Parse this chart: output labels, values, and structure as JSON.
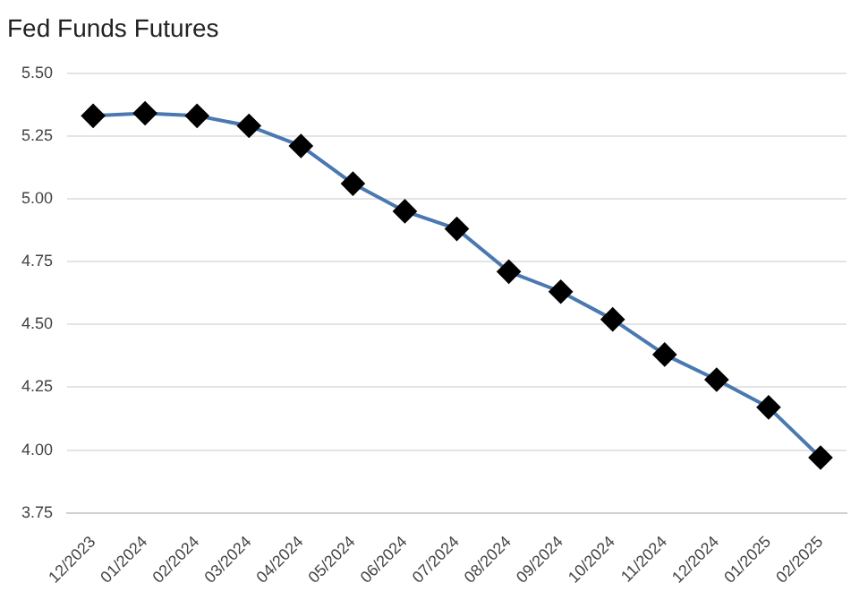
{
  "chart_data": {
    "type": "line",
    "title": "Fed Funds Futures",
    "categories": [
      "12/2023",
      "01/2024",
      "02/2024",
      "03/2024",
      "04/2024",
      "05/2024",
      "06/2024",
      "07/2024",
      "08/2024",
      "09/2024",
      "10/2024",
      "11/2024",
      "12/2024",
      "01/2025",
      "02/2025"
    ],
    "series": [
      {
        "color": "#4a78b0",
        "colors": [
          "#000000",
          "#000000",
          "#000000",
          "#000000",
          "#000000",
          "#000000",
          "#000000",
          "#000000",
          "#000000",
          "#000000",
          "#000000",
          "#000000",
          "#000000",
          "#000000",
          "#000000"
        ],
        "values": [
          5.33,
          5.34,
          5.33,
          5.29,
          5.21,
          5.06,
          4.95,
          4.88,
          4.71,
          4.63,
          4.52,
          4.38,
          4.28,
          4.17,
          3.97
        ]
      }
    ],
    "ylim": [
      3.75,
      5.5
    ],
    "yticks": [
      {
        "value": 3.75,
        "label": "3.75"
      },
      {
        "value": 4,
        "label": "4.00"
      },
      {
        "value": 4.25,
        "label": "4.25"
      },
      {
        "value": 4.5,
        "label": "4.50"
      },
      {
        "value": 4.75,
        "label": "4.75"
      },
      {
        "value": 5,
        "label": "5.00"
      },
      {
        "value": 5.25,
        "label": "5.25"
      },
      {
        "value": 5.5,
        "label": "5.50"
      }
    ],
    "grid": "y",
    "legend": false,
    "marker": "diamond",
    "line_style": "solid"
  }
}
